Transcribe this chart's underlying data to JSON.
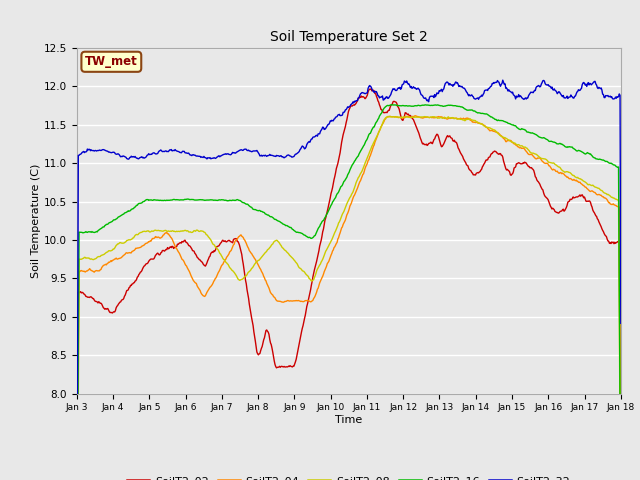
{
  "title": "Soil Temperature Set 2",
  "xlabel": "Time",
  "ylabel": "Soil Temperature (C)",
  "ylim": [
    8.0,
    12.5
  ],
  "annotation": "TW_met",
  "annotation_color": "#8B0000",
  "annotation_bg": "#FFFFCC",
  "annotation_border": "#8B4513",
  "series_colors": {
    "SoilT2_02": "#CC0000",
    "SoilT2_04": "#FF8800",
    "SoilT2_08": "#CCCC00",
    "SoilT2_16": "#00BB00",
    "SoilT2_32": "#0000CC"
  },
  "bg_color": "#E8E8E8",
  "plot_bg_color": "#E8E8E8",
  "grid_color": "#FFFFFF",
  "tick_labels": [
    "Jan 3",
    "Jan 4",
    "Jan 5",
    "Jan 6",
    "Jan 7",
    "Jan 8",
    "Jan 9",
    "Jan 10",
    "Jan 11",
    "Jan 12",
    "Jan 13",
    "Jan 14",
    "Jan 15",
    "Jan 16",
    "Jan 17",
    "Jan 18"
  ],
  "yticks": [
    8.0,
    8.5,
    9.0,
    9.5,
    10.0,
    10.5,
    11.0,
    11.5,
    12.0,
    12.5
  ]
}
